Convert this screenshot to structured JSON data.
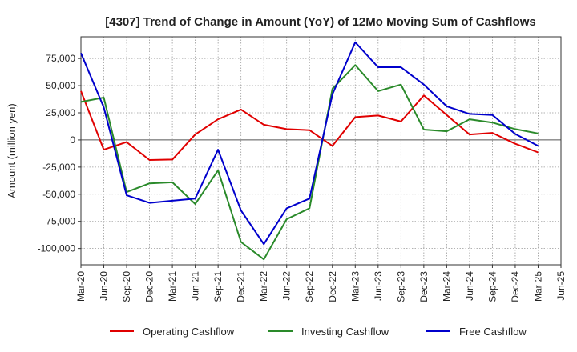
{
  "chart_data": {
    "type": "line",
    "title": "[4307]  Trend of Change in Amount (YoY) of 12Mo Moving Sum of Cashflows",
    "xlabel": "",
    "ylabel": "Amount (million yen)",
    "ylim": [
      -115000,
      95000
    ],
    "yticks": [
      75000,
      50000,
      25000,
      0,
      -25000,
      -50000,
      -75000,
      -100000
    ],
    "ytick_labels": [
      "75,000",
      "50,000",
      "25,000",
      "0",
      "-25,000",
      "-50,000",
      "-75,000",
      "-100,000"
    ],
    "categories": [
      "Mar-20",
      "Jun-20",
      "Sep-20",
      "Dec-20",
      "Mar-21",
      "Jun-21",
      "Sep-21",
      "Dec-21",
      "Mar-22",
      "Jun-22",
      "Sep-22",
      "Dec-22",
      "Mar-23",
      "Jun-23",
      "Sep-23",
      "Dec-23",
      "Mar-24",
      "Jun-24",
      "Sep-24",
      "Dec-24",
      "Mar-25",
      "Jun-25"
    ],
    "grid": true,
    "legend_position": "bottom",
    "series": [
      {
        "name": "Operating Cashflow",
        "color": "#e00000",
        "values": [
          45000,
          -9000,
          -2000,
          -18500,
          -18000,
          5000,
          19000,
          28000,
          14000,
          10000,
          9000,
          -5500,
          21000,
          22500,
          17000,
          41000,
          23000,
          5000,
          6500,
          -3500,
          -11500,
          null
        ]
      },
      {
        "name": "Investing Cashflow",
        "color": "#2a8a2a",
        "values": [
          35000,
          39000,
          -48000,
          -40000,
          -39000,
          -59000,
          -28000,
          -94000,
          -110000,
          -73000,
          -63000,
          47000,
          69000,
          45000,
          51000,
          9500,
          8000,
          19000,
          16000,
          10000,
          6000,
          null
        ]
      },
      {
        "name": "Free Cashflow",
        "color": "#0000cc",
        "values": [
          80000,
          30000,
          -51000,
          -58000,
          -56000,
          -54000,
          -9000,
          -65000,
          -96000,
          -63000,
          -54000,
          42000,
          90000,
          67000,
          67000,
          51000,
          31000,
          24000,
          23000,
          5500,
          -5500,
          null
        ]
      }
    ]
  }
}
